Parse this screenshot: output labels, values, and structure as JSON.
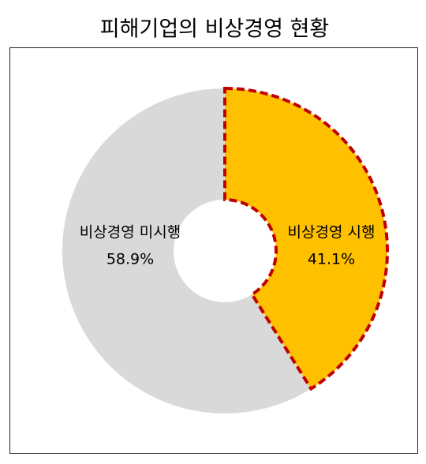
{
  "chart_data": {
    "type": "pie",
    "title": "피해기업의 비상경영 현황",
    "categories": [
      "비상경영 시행",
      "비상경영 미시행"
    ],
    "values": [
      41.1,
      58.9
    ],
    "value_labels": [
      "41.1%",
      "58.9%"
    ],
    "colors": [
      "#FFC000",
      "#D9D9D9"
    ],
    "donut": true
  }
}
